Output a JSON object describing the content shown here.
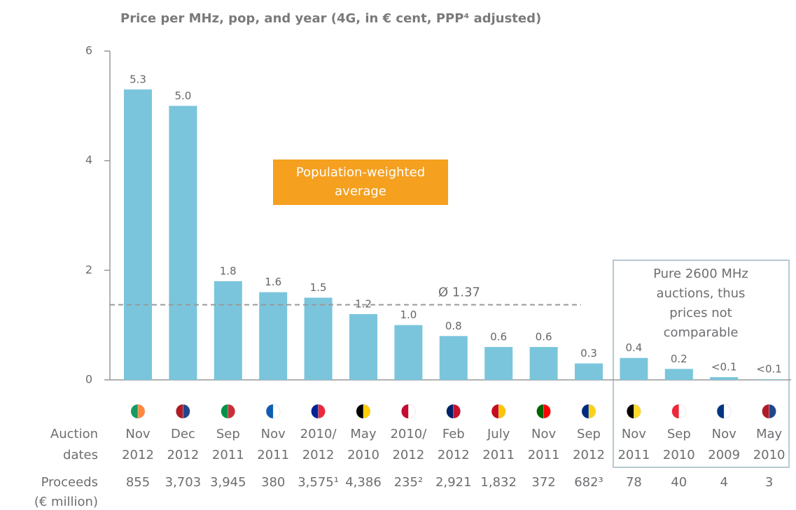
{
  "chart_data": {
    "type": "bar",
    "title": "Price per MHz, pop, and year (4G, in € cent, PPP⁴ adjusted)",
    "categories": [
      [
        "Nov",
        "2012"
      ],
      [
        "Dec",
        "2012"
      ],
      [
        "Sep",
        "2011"
      ],
      [
        "Nov",
        "2011"
      ],
      [
        "2010/",
        "2012"
      ],
      [
        "May",
        "2010"
      ],
      [
        "2010/",
        "2012"
      ],
      [
        "Feb",
        "2012"
      ],
      [
        "July",
        "2011"
      ],
      [
        "Nov",
        "2011"
      ],
      [
        "Sep",
        "2012"
      ],
      [
        "Nov",
        "2011"
      ],
      [
        "Sep",
        "2010"
      ],
      [
        "Nov",
        "2009"
      ],
      [
        "May",
        "2010"
      ]
    ],
    "values": [
      5.3,
      5.0,
      1.8,
      1.6,
      1.5,
      1.2,
      1.0,
      0.8,
      0.6,
      0.6,
      0.3,
      0.4,
      0.2,
      0.05,
      0.01
    ],
    "value_labels": [
      "5.3",
      "5.0",
      "1.8",
      "1.6",
      "1.5",
      "1.2",
      "1.0",
      "0.8",
      "0.6",
      "0.6",
      "0.3",
      "0.4",
      "0.2",
      "<0.1",
      "<0.1"
    ],
    "color": "#7ac5dc",
    "ylim": [
      0,
      6
    ],
    "yticks": [
      0,
      2,
      4,
      6
    ],
    "average": {
      "value": 1.37,
      "label": "Ø 1.37"
    },
    "average_note": [
      "Population-weighted",
      "average"
    ],
    "box_note": [
      "Pure 2600 MHz",
      "auctions, thus",
      "prices not",
      "comparable"
    ],
    "dates_label": [
      "Auction",
      "dates"
    ],
    "proceeds": {
      "label": [
        "Proceeds",
        "(€ million)"
      ],
      "values": [
        "855",
        "3,703",
        "3,945",
        "380",
        "3,575¹",
        "4,386",
        "235²",
        "2,921",
        "1,832",
        "372",
        "682³",
        "78",
        "40",
        "4",
        "3"
      ]
    }
  }
}
